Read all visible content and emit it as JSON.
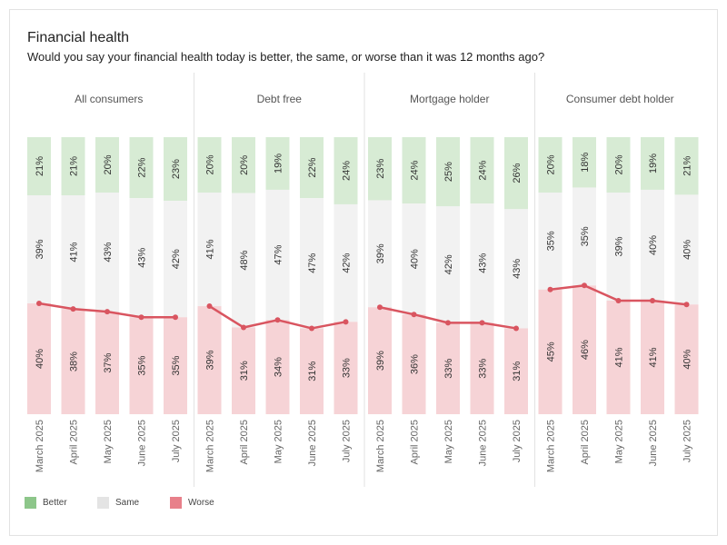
{
  "chart_data": {
    "type": "bar",
    "title": "Financial health",
    "subtitle": "Would you say your financial health today is better, the same, or worse than it was 12 months ago?",
    "categories": [
      "March 2025",
      "April 2025",
      "May 2025",
      "June 2025",
      "July 2025"
    ],
    "panels": [
      {
        "name": "All consumers",
        "better": [
          21,
          21,
          20,
          22,
          23
        ],
        "same": [
          39,
          41,
          43,
          43,
          42
        ],
        "worse": [
          40,
          38,
          37,
          35,
          35
        ]
      },
      {
        "name": "Debt free",
        "better": [
          20,
          20,
          19,
          22,
          24
        ],
        "same": [
          41,
          48,
          47,
          47,
          42
        ],
        "worse": [
          39,
          31,
          34,
          31,
          33
        ]
      },
      {
        "name": "Mortgage holder",
        "better": [
          23,
          24,
          25,
          24,
          26
        ],
        "same": [
          39,
          40,
          42,
          43,
          43
        ],
        "worse": [
          39,
          36,
          33,
          33,
          31
        ]
      },
      {
        "name": "Consumer debt holder",
        "better": [
          20,
          18,
          20,
          19,
          21
        ],
        "same": [
          35,
          35,
          39,
          40,
          40
        ],
        "worse": [
          45,
          46,
          41,
          41,
          40
        ]
      }
    ],
    "legend": [
      {
        "key": "better",
        "label": "Better",
        "color": "#8dc68a"
      },
      {
        "key": "same",
        "label": "Same",
        "color": "#e4e4e4"
      },
      {
        "key": "worse",
        "label": "Worse",
        "color": "#e8808a"
      }
    ],
    "bar_colors": {
      "better": "#d7ebd4",
      "same": "#f2f2f2",
      "worse": "#f6d3d6"
    },
    "line_color": "#d95560",
    "legend_position": "bottom-left"
  }
}
